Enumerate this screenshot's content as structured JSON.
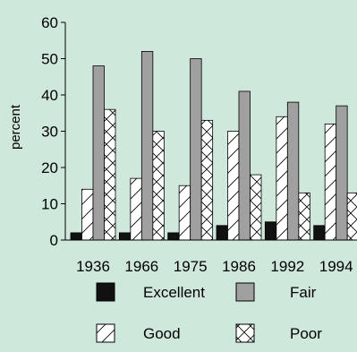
{
  "chart_data": {
    "type": "bar",
    "title": "",
    "xlabel": "",
    "ylabel": "percent",
    "ylim": [
      0,
      60
    ],
    "yticks": [
      0,
      10,
      20,
      30,
      40,
      50,
      60
    ],
    "grid": false,
    "legend_position": "bottom",
    "background": "#cfe8dc",
    "categories": [
      "1936",
      "1966",
      "1975",
      "1986",
      "1992",
      "1994"
    ],
    "series": [
      {
        "name": "Excellent",
        "values": [
          2,
          2,
          2,
          4,
          5,
          4
        ],
        "fill": "#111111",
        "pattern": "solid"
      },
      {
        "name": "Good",
        "values": [
          14,
          17,
          15,
          30,
          34,
          32
        ],
        "fill": "#ffffff",
        "pattern": "diagonal"
      },
      {
        "name": "Fair",
        "values": [
          48,
          52,
          50,
          41,
          38,
          37
        ],
        "fill": "#a0a0a0",
        "pattern": "solid"
      },
      {
        "name": "Poor",
        "values": [
          36,
          30,
          33,
          18,
          13,
          13
        ],
        "fill": "#ffffff",
        "pattern": "crosshatch"
      }
    ],
    "legend": [
      "Excellent",
      "Fair",
      "Good",
      "Poor"
    ]
  }
}
